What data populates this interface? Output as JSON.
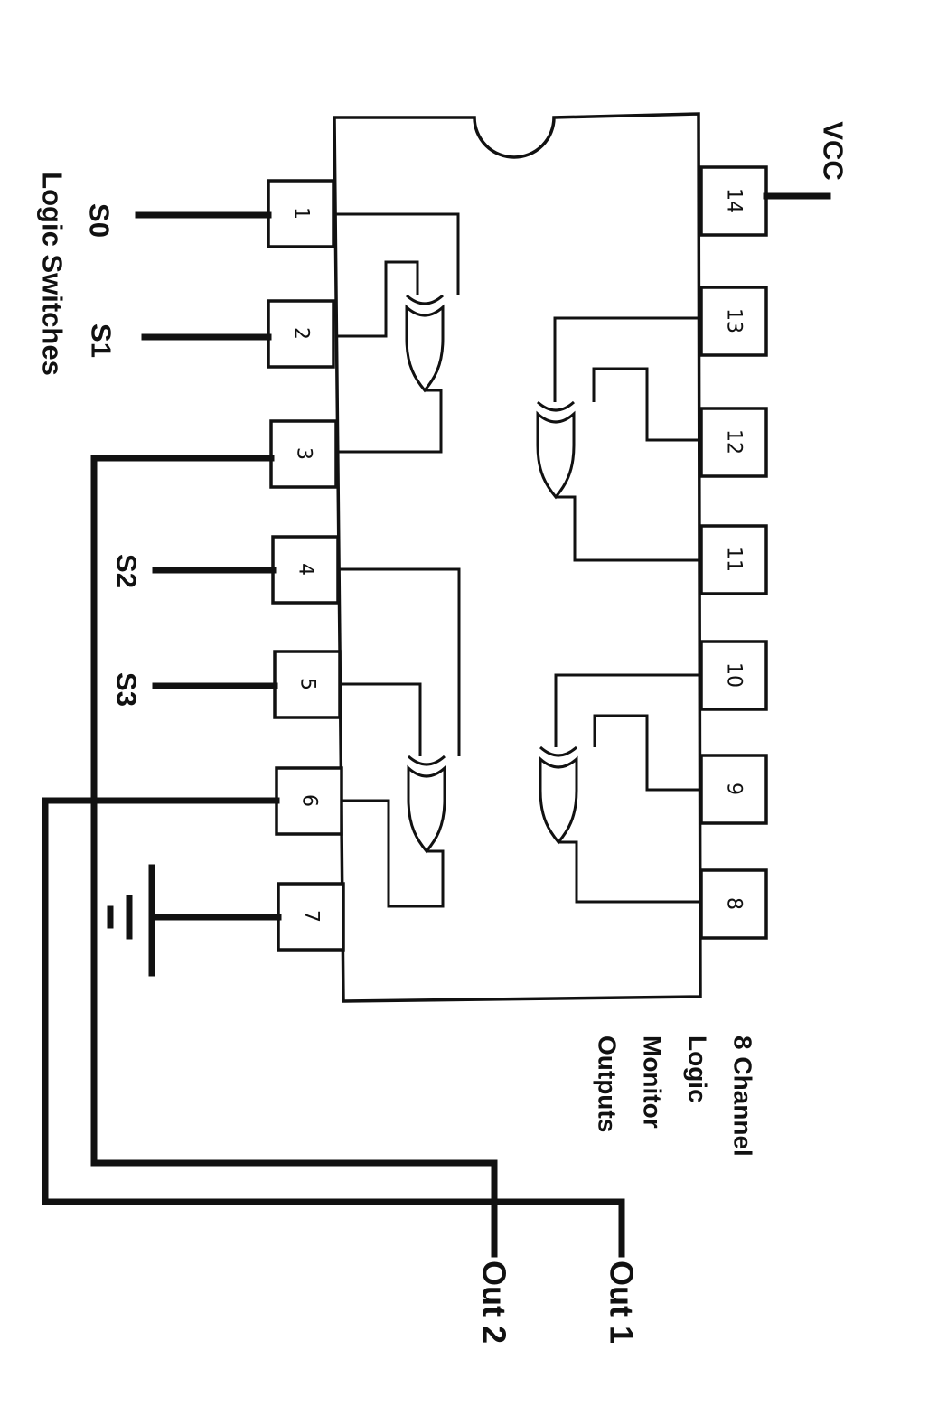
{
  "labels": {
    "vcc": "VCC",
    "s0": "S0",
    "s1": "S1",
    "s2": "S2",
    "s3": "S3",
    "logic_switches": "Logic Switches",
    "monitor": [
      "8 Channel",
      "Logic",
      "Monitor",
      "Outputs"
    ],
    "out1": "Out 1",
    "out2": "Out 2"
  },
  "pins": {
    "p1": "1",
    "p2": "2",
    "p3": "3",
    "p4": "4",
    "p5": "5",
    "p6": "6",
    "p7": "7",
    "p8": "8",
    "p9": "9",
    "p10": "10",
    "p11": "11",
    "p12": "12",
    "p13": "13",
    "p14": "14"
  },
  "colors": {
    "ink": "#111111",
    "paper": "#ffffff"
  }
}
